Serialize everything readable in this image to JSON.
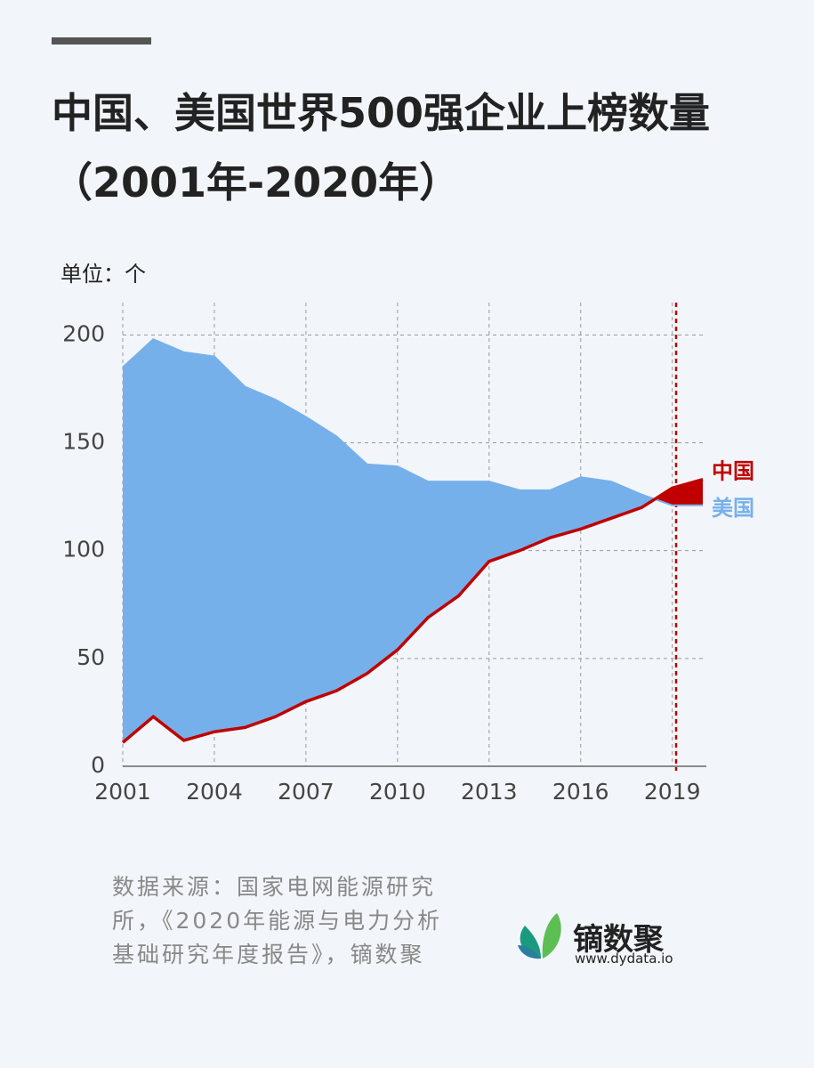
{
  "chart_data": {
    "type": "area-diff",
    "title": "中国、美国世界500强企业上榜数量（2001年-2020年）",
    "y_label": "单位：个",
    "x": [
      2001,
      2002,
      2003,
      2004,
      2005,
      2006,
      2007,
      2008,
      2009,
      2010,
      2011,
      2012,
      2013,
      2014,
      2015,
      2016,
      2017,
      2018,
      2019,
      2020
    ],
    "series": [
      {
        "name": "中国",
        "color": "#c00000",
        "values": [
          11,
          23,
          12,
          16,
          18,
          23,
          30,
          35,
          43,
          54,
          69,
          79,
          95,
          100,
          106,
          110,
          115,
          120,
          129,
          133
        ]
      },
      {
        "name": "美国",
        "color": "#76b0ea",
        "values": [
          185,
          198,
          192,
          190,
          176,
          170,
          162,
          153,
          140,
          139,
          132,
          132,
          132,
          128,
          128,
          134,
          132,
          126,
          121,
          121
        ]
      }
    ],
    "xlim": [
      2001,
      2020
    ],
    "xticks": [
      2001,
      2004,
      2007,
      2010,
      2013,
      2016,
      2019
    ],
    "ylim": [
      0,
      215
    ],
    "yticks": [
      0,
      50,
      100,
      150,
      200
    ],
    "grid": true,
    "source": "数据来源：国家电网能源研究所，《2020年能源与电力分析基础研究年度报告》，镝数聚",
    "brand": "镝数聚",
    "brand_url": "www.dydata.io"
  }
}
